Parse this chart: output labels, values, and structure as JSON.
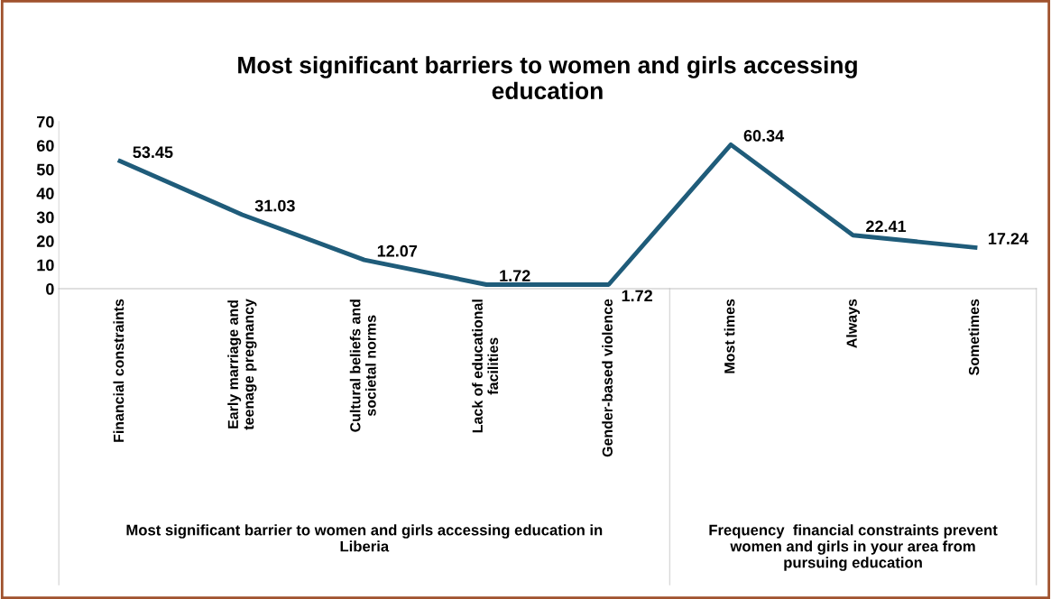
{
  "chart_data": {
    "type": "line",
    "title": "Most significant barriers to women and girls accessing\neducation",
    "categories": [
      "Financial constraints",
      "Early marriage and\nteenage pregnancy",
      "Cultural beliefs and\nsocietal norms",
      "Lack of educational\nfacilities",
      "Gender-based violence",
      "Most times",
      "Always",
      "Sometimes"
    ],
    "series": [
      {
        "color": "#1f5c7a",
        "values": [
          53.45,
          31.03,
          12.07,
          1.72,
          1.72,
          60.34,
          22.41,
          17.24
        ]
      }
    ],
    "ylim": [
      0,
      70
    ],
    "yticks": [
      0,
      10,
      20,
      30,
      40,
      50,
      60,
      70
    ],
    "data_labels": true,
    "grid": false,
    "legend": false,
    "marker": "none",
    "line_style": "solid",
    "annotations": [
      "Most significant barrier to women and girls accessing education in\nLiberia",
      "Frequency  financial constraints prevent\nwomen and girls in your area from\npursuing education"
    ]
  }
}
